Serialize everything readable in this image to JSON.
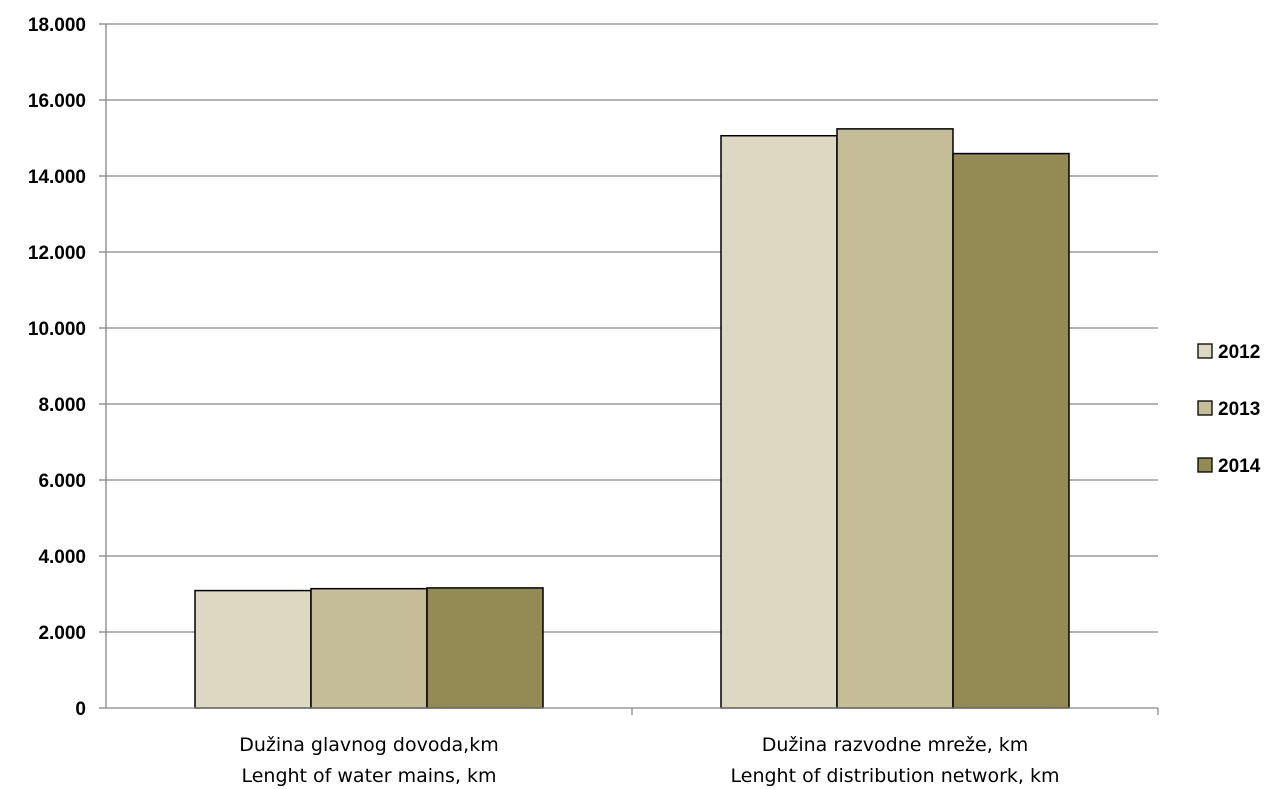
{
  "chart_data": {
    "type": "bar",
    "categories": [
      [
        "Dužina glavnog dovoda,km",
        "Lenght of water mains, km"
      ],
      [
        "Dužina razvodne mreže, km",
        "Lenght of distribution network, km"
      ]
    ],
    "series": [
      {
        "name": "2012",
        "values": [
          3090,
          15060
        ],
        "color": "#ddd8c2"
      },
      {
        "name": "2013",
        "values": [
          3140,
          15240
        ],
        "color": "#c4bd97"
      },
      {
        "name": "2014",
        "values": [
          3160,
          14590
        ],
        "color": "#948a54"
      }
    ],
    "ylim": [
      0,
      18000
    ],
    "yticks": [
      "0",
      "2.000",
      "4.000",
      "6.000",
      "8.000",
      "10.000",
      "12.000",
      "14.000",
      "16.000",
      "18.000"
    ],
    "grid": true,
    "legend": "right",
    "gridline_color": "#868686"
  }
}
